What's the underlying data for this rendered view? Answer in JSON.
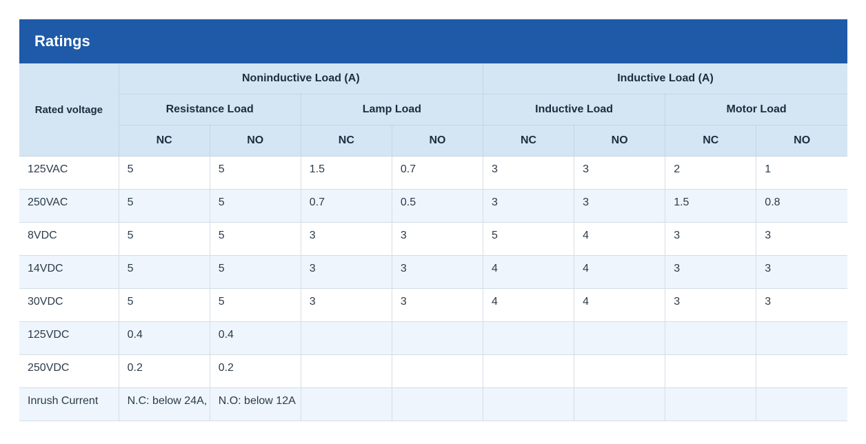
{
  "title": "Ratings",
  "header": {
    "rated_voltage": "Rated voltage",
    "noninductive": "Noninductive Load (A)",
    "inductive": "Inductive Load (A)",
    "resistance": "Resistance Load",
    "lamp": "Lamp Load",
    "inductive_sub": "Inductive Load",
    "motor": "Motor Load",
    "nc": "NC",
    "no": "NO"
  },
  "rows": [
    {
      "voltage": "125VAC",
      "cells": [
        "5",
        "5",
        "1.5",
        "0.7",
        "3",
        "3",
        "2",
        "1"
      ]
    },
    {
      "voltage": "250VAC",
      "cells": [
        "5",
        "5",
        "0.7",
        "0.5",
        "3",
        "3",
        "1.5",
        "0.8"
      ]
    },
    {
      "voltage": "8VDC",
      "cells": [
        "5",
        "5",
        "3",
        "3",
        "5",
        "4",
        "3",
        "3"
      ]
    },
    {
      "voltage": "14VDC",
      "cells": [
        "5",
        "5",
        "3",
        "3",
        "4",
        "4",
        "3",
        "3"
      ]
    },
    {
      "voltage": "30VDC",
      "cells": [
        "5",
        "5",
        "3",
        "3",
        "4",
        "4",
        "3",
        "3"
      ]
    },
    {
      "voltage": "125VDC",
      "cells": [
        "0.4",
        "0.4",
        "",
        "",
        "",
        "",
        "",
        ""
      ]
    },
    {
      "voltage": "250VDC",
      "cells": [
        "0.2",
        "0.2",
        "",
        "",
        "",
        "",
        "",
        ""
      ]
    }
  ],
  "inrush": {
    "label": "Inrush Current",
    "nc_value": "N.C: below 24A,",
    "no_value": "N.O: below 12A"
  }
}
